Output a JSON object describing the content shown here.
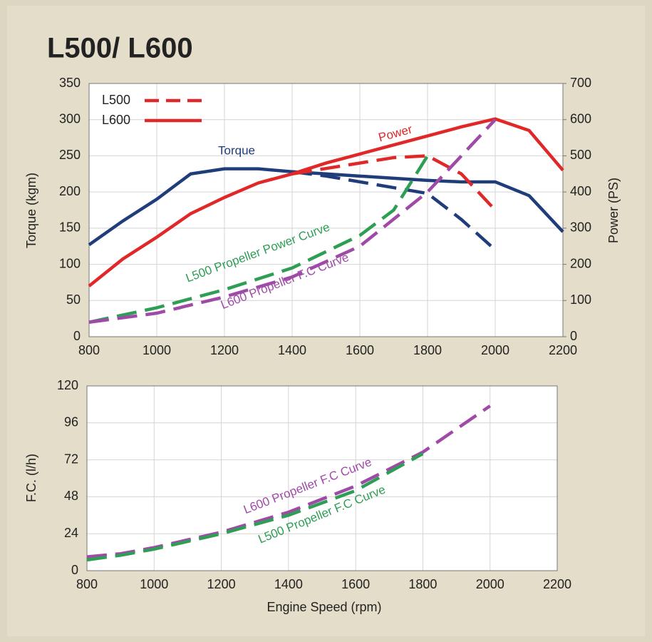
{
  "chart_data": [
    {
      "type": "line",
      "title": "L500/ L600",
      "ylabel": "Torque (kgm)",
      "y2label": "Power (PS)",
      "xlim": [
        800,
        2200
      ],
      "xticks": [
        800,
        1000,
        1200,
        1400,
        1600,
        1800,
        2000,
        2200
      ],
      "ylim": [
        0,
        350
      ],
      "yticks": [
        0,
        50,
        100,
        150,
        200,
        250,
        300,
        350
      ],
      "y2lim": [
        0,
        700
      ],
      "y2ticks": [
        0,
        100,
        200,
        300,
        400,
        500,
        600,
        700
      ],
      "grid": true,
      "legend": [
        {
          "text": "L500",
          "color": "#e02828",
          "dashed": true
        },
        {
          "text": "L600",
          "color": "#e02828",
          "dashed": false
        }
      ],
      "series": [
        {
          "color": "#1f3d7a",
          "dashed": false,
          "x": [
            800,
            900,
            1000,
            1100,
            1200,
            1300,
            1400,
            1500,
            1600,
            1700,
            1800,
            1900,
            2000,
            2100,
            2200
          ],
          "values": [
            127,
            160,
            190,
            225,
            232,
            232,
            228,
            225,
            222,
            219,
            216,
            214,
            214,
            195,
            145
          ]
        },
        {
          "color": "#1f3d7a",
          "dashed": true,
          "x": [
            1400,
            1500,
            1600,
            1700,
            1800,
            1900,
            2000
          ],
          "values": [
            228,
            222,
            214,
            206,
            198,
            162,
            120
          ]
        },
        {
          "color": "#e02828",
          "dashed": false,
          "axis": "y2",
          "x": [
            800,
            900,
            1000,
            1100,
            1200,
            1300,
            1400,
            1500,
            1600,
            1700,
            1800,
            1900,
            2000,
            2100,
            2200
          ],
          "values": [
            140,
            215,
            275,
            340,
            385,
            425,
            450,
            480,
            505,
            530,
            555,
            580,
            602,
            570,
            460
          ]
        },
        {
          "color": "#e02828",
          "dashed": true,
          "axis": "y2",
          "x": [
            1400,
            1500,
            1600,
            1700,
            1800,
            1900,
            2000
          ],
          "values": [
            450,
            465,
            480,
            495,
            500,
            450,
            350
          ]
        },
        {
          "color": "#2e9e55",
          "dashed": true,
          "axis": "y2",
          "x": [
            800,
            1000,
            1200,
            1400,
            1600,
            1700,
            1800
          ],
          "values": [
            40,
            80,
            130,
            190,
            280,
            350,
            500
          ]
        },
        {
          "color": "#a04aa8",
          "dashed": true,
          "axis": "y2",
          "x": [
            800,
            1000,
            1200,
            1400,
            1600,
            1800,
            2000
          ],
          "values": [
            40,
            65,
            110,
            165,
            250,
            400,
            600
          ]
        }
      ],
      "annotations": [
        {
          "text": "Torque",
          "color": "#1f3d7a"
        },
        {
          "text": "Power",
          "color": "#e02828"
        },
        {
          "text": "L500 Propeller Power Curve",
          "color": "#2e9e55"
        },
        {
          "text": "L600 Propeller F.C Curve",
          "color": "#a04aa8"
        }
      ]
    },
    {
      "type": "line",
      "xlabel": "Engine Speed (rpm)",
      "ylabel": "F.C. (l/h)",
      "xlim": [
        800,
        2200
      ],
      "xticks": [
        800,
        1000,
        1200,
        1400,
        1600,
        1800,
        2000,
        2200
      ],
      "ylim": [
        0,
        120
      ],
      "yticks": [
        0,
        24,
        48,
        72,
        96,
        120
      ],
      "grid": true,
      "series": [
        {
          "color": "#a04aa8",
          "dashed": true,
          "x": [
            800,
            900,
            1000,
            1200,
            1400,
            1600,
            1800,
            2000
          ],
          "values": [
            9,
            11,
            15,
            25,
            38,
            55,
            77,
            107
          ]
        },
        {
          "color": "#2e9e55",
          "dashed": true,
          "x": [
            800,
            900,
            1000,
            1200,
            1400,
            1600,
            1800
          ],
          "values": [
            7,
            10,
            14,
            24,
            36,
            52,
            76
          ]
        }
      ],
      "annotations": [
        {
          "text": "L600 Propeller F.C Curve",
          "color": "#a04aa8"
        },
        {
          "text": "L500 Propeller F.C Curve",
          "color": "#2e9e55"
        }
      ]
    }
  ]
}
